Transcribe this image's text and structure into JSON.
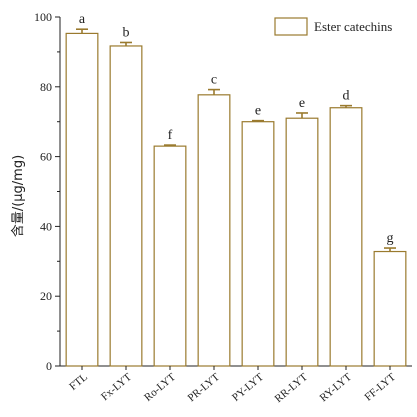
{
  "chart_data": {
    "type": "bar",
    "categories": [
      "FTL",
      "Fx-LYT",
      "Ro-LYT",
      "PR-LYT",
      "PY-LYT",
      "RR-LYT",
      "RY-LYT",
      "FF-LYT"
    ],
    "series": [
      {
        "name": "Ester catechins",
        "values": [
          95.3,
          91.7,
          63.0,
          77.7,
          70.0,
          71.0,
          74.0,
          32.8
        ],
        "errors": [
          1.2,
          1.0,
          0.3,
          1.5,
          0.3,
          1.5,
          0.6,
          1.0
        ],
        "letters": [
          "a",
          "b",
          "f",
          "c",
          "e",
          "e",
          "d",
          "g"
        ]
      }
    ],
    "ylabel": "含量/(μg/mg)",
    "xlabel": "",
    "ylim": [
      0,
      100
    ],
    "yticks": [
      0,
      20,
      40,
      60,
      80,
      100
    ],
    "legend": "top-right",
    "grid": false,
    "colors": {
      "bar_fill": "#ffffff",
      "bar_edge": "#9a7a2e",
      "error": "#9a7a2e",
      "axis": "#222222"
    }
  }
}
